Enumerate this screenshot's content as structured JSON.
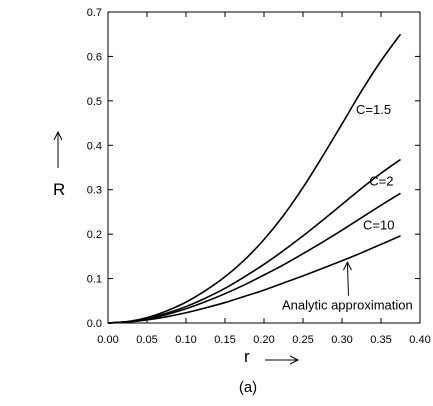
{
  "chart_data": {
    "type": "line",
    "caption": "(a)",
    "xlabel": "r",
    "ylabel": "R",
    "xlim": [
      0.0,
      0.4
    ],
    "ylim": [
      0.0,
      0.7
    ],
    "xticks": [
      "0.00",
      "0.05",
      "0.10",
      "0.15",
      "0.20",
      "0.25",
      "0.30",
      "0.35",
      "0.40"
    ],
    "yticks": [
      "0.0",
      "0.1",
      "0.2",
      "0.3",
      "0.4",
      "0.5",
      "0.6",
      "0.7"
    ],
    "grid": false,
    "series": [
      {
        "name": "C=1.5",
        "x": [
          0.0,
          0.025,
          0.05,
          0.075,
          0.1,
          0.125,
          0.15,
          0.175,
          0.2,
          0.225,
          0.25,
          0.275,
          0.3,
          0.325,
          0.35,
          0.375
        ],
        "y": [
          0.0,
          0.003,
          0.012,
          0.027,
          0.047,
          0.073,
          0.104,
          0.142,
          0.188,
          0.242,
          0.305,
          0.375,
          0.448,
          0.522,
          0.59,
          0.65
        ]
      },
      {
        "name": "C=2",
        "x": [
          0.0,
          0.025,
          0.05,
          0.075,
          0.1,
          0.125,
          0.15,
          0.175,
          0.2,
          0.225,
          0.25,
          0.275,
          0.3,
          0.325,
          0.35,
          0.375
        ],
        "y": [
          0.0,
          0.003,
          0.01,
          0.022,
          0.037,
          0.056,
          0.078,
          0.104,
          0.132,
          0.163,
          0.196,
          0.231,
          0.267,
          0.303,
          0.337,
          0.368
        ]
      },
      {
        "name": "C=10",
        "x": [
          0.0,
          0.025,
          0.05,
          0.075,
          0.1,
          0.125,
          0.15,
          0.175,
          0.2,
          0.225,
          0.25,
          0.275,
          0.3,
          0.325,
          0.35,
          0.375
        ],
        "y": [
          0.0,
          0.003,
          0.009,
          0.019,
          0.032,
          0.048,
          0.066,
          0.086,
          0.108,
          0.131,
          0.156,
          0.182,
          0.209,
          0.237,
          0.265,
          0.292
        ]
      },
      {
        "name": "Analytic approximation",
        "x": [
          0.0,
          0.025,
          0.05,
          0.075,
          0.1,
          0.125,
          0.15,
          0.175,
          0.2,
          0.225,
          0.25,
          0.275,
          0.3,
          0.325,
          0.35,
          0.375
        ],
        "y": [
          0.0,
          0.002,
          0.007,
          0.014,
          0.023,
          0.034,
          0.046,
          0.06,
          0.074,
          0.09,
          0.106,
          0.123,
          0.14,
          0.158,
          0.177,
          0.196
        ]
      }
    ],
    "annotations": [
      {
        "text": "C=1.5",
        "x": 0.318,
        "y": 0.47
      },
      {
        "text": "C=2",
        "x": 0.335,
        "y": 0.31
      },
      {
        "text": "C=10",
        "x": 0.327,
        "y": 0.21
      },
      {
        "text": "Analytic approximation",
        "x": 0.223,
        "y": 0.03,
        "arrow_to": [
          0.307,
          0.137
        ]
      }
    ]
  }
}
